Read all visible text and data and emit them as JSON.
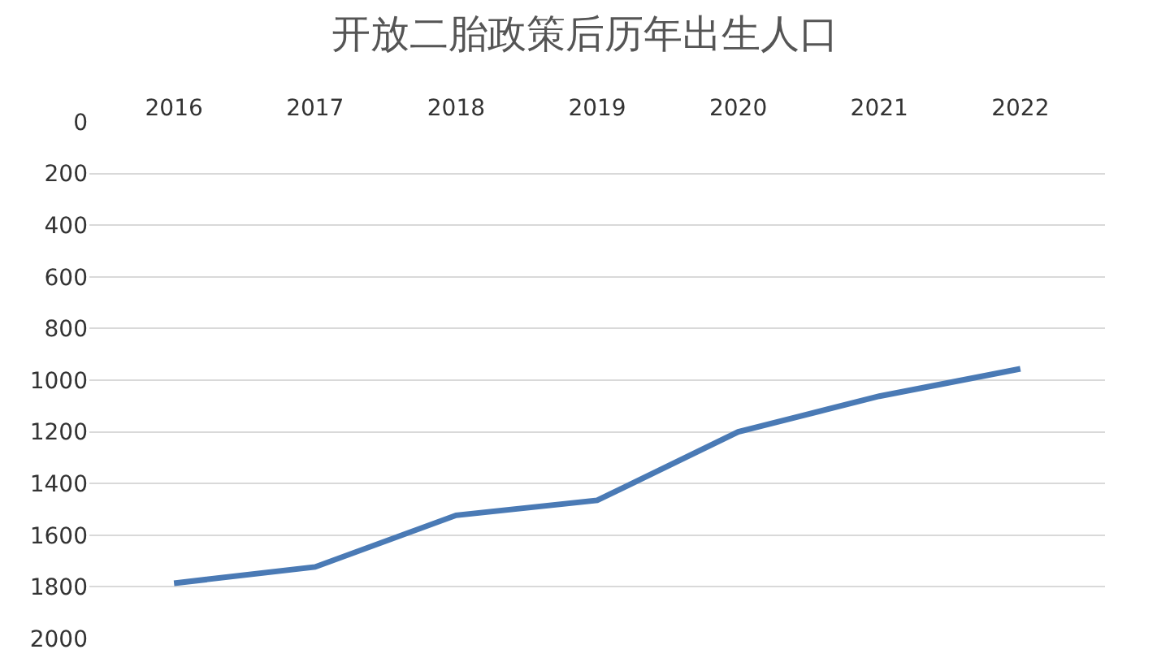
{
  "chart_data": {
    "type": "line",
    "title": "开放二胎政策后历年出生人口",
    "categories": [
      "2016",
      "2017",
      "2018",
      "2019",
      "2020",
      "2021",
      "2022"
    ],
    "series": [
      {
        "color": "#4a7ab5",
        "values": [
          1786,
          1723,
          1523,
          1465,
          1200,
          1062,
          956
        ]
      }
    ],
    "ylim": [
      2000,
      0
    ],
    "yticks": [
      0,
      200,
      400,
      600,
      800,
      1000,
      1200,
      1400,
      1600,
      1800,
      2000
    ],
    "grid": "y",
    "marker": "none",
    "line_style": "solid"
  }
}
